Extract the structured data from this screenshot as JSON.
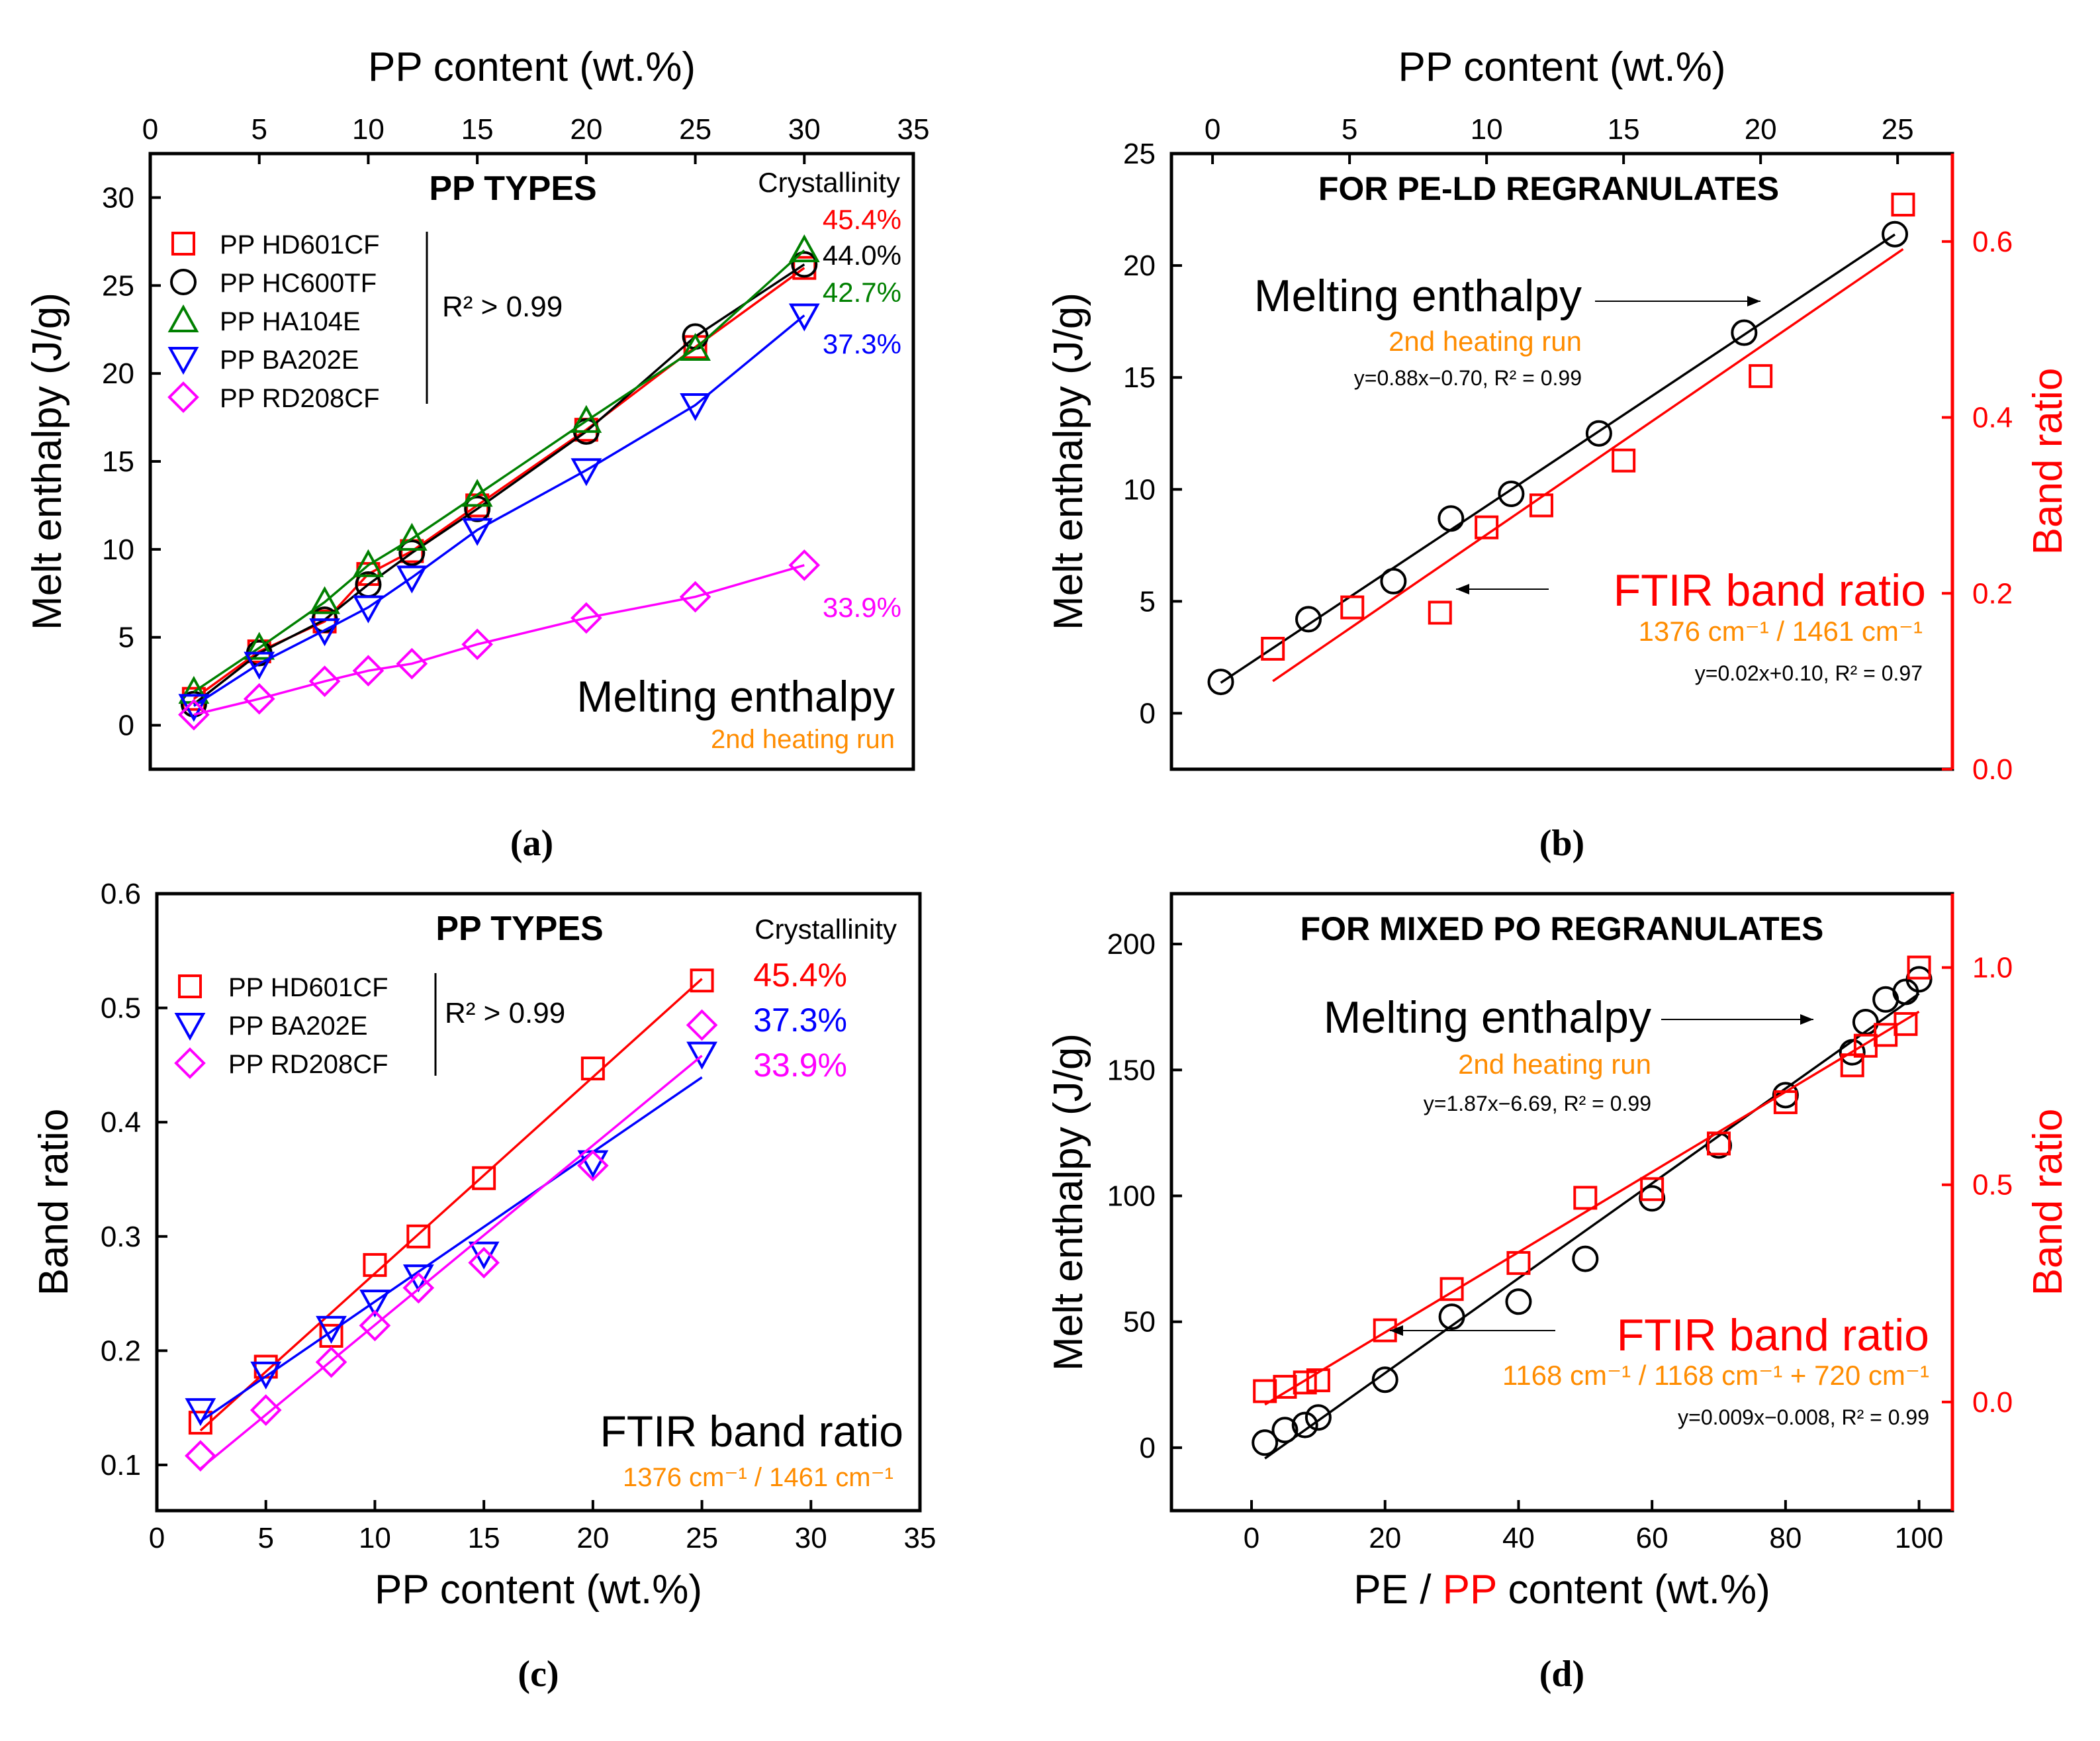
{
  "chart_data": [
    {
      "id": "a",
      "type": "scatter",
      "panel_label": "(a)",
      "title": "PP TYPES",
      "xlabel": "PP content (wt.%)",
      "ylabel": "Melt enthalpy (J/g)",
      "x_axis_position": "top",
      "xlim": [
        0,
        35
      ],
      "ylim": [
        -2.5,
        32.5
      ],
      "x_ticks": [
        "0",
        "5",
        "10",
        "15",
        "20",
        "25",
        "30",
        "35"
      ],
      "y_ticks": [
        "0",
        "5",
        "10",
        "15",
        "20",
        "25",
        "30"
      ],
      "legend_position": "top-left",
      "crystallinity_header": "Crystallinity",
      "r2_note": "R² > 0.99",
      "annotation_main": "Melting enthalpy",
      "annotation_sub": "2nd heating run",
      "series": [
        {
          "name": "PP HD601CF",
          "marker": "square",
          "color": "#ff0000",
          "crystallinity": "45.4%",
          "x": [
            2,
            5,
            8,
            10,
            12,
            15,
            20,
            25,
            30
          ],
          "y": [
            1.5,
            4.2,
            5.9,
            8.6,
            9.9,
            12.5,
            16.8,
            21.5,
            26.0
          ]
        },
        {
          "name": "PP HC600TF",
          "marker": "circle",
          "color": "#000000",
          "crystallinity": "44.0%",
          "x": [
            2,
            5,
            8,
            10,
            12,
            15,
            20,
            25,
            30
          ],
          "y": [
            1.2,
            4.1,
            6.0,
            8.0,
            9.8,
            12.3,
            16.7,
            22.1,
            26.2
          ]
        },
        {
          "name": "PP HA104E",
          "marker": "triangle-up",
          "color": "#008000",
          "crystallinity": "42.7%",
          "x": [
            2,
            5,
            8,
            10,
            12,
            15,
            20,
            25,
            30
          ],
          "y": [
            1.9,
            4.4,
            7.0,
            9.1,
            10.6,
            13.1,
            17.3,
            21.4,
            27.0
          ]
        },
        {
          "name": "PP BA202E",
          "marker": "triangle-down",
          "color": "#0000ff",
          "crystallinity": "37.3%",
          "x": [
            2,
            5,
            8,
            10,
            12,
            15,
            20,
            25,
            30
          ],
          "y": [
            1.1,
            3.5,
            5.4,
            6.7,
            8.4,
            11.1,
            14.5,
            18.2,
            23.3
          ]
        },
        {
          "name": "PP RD208CF",
          "marker": "diamond",
          "color": "#ff00ff",
          "crystallinity": "33.9%",
          "x": [
            2,
            5,
            8,
            10,
            12,
            15,
            20,
            25,
            30
          ],
          "y": [
            0.6,
            1.5,
            2.5,
            3.1,
            3.5,
            4.6,
            6.1,
            7.3,
            9.1
          ]
        }
      ]
    },
    {
      "id": "b",
      "type": "scatter",
      "panel_label": "(b)",
      "title": "FOR PE-LD REGRANULATES",
      "xlabel": "PP content (wt.%)",
      "ylabel": "Melt enthalpy (J/g)",
      "y2label": "Band ratio",
      "x_axis_position": "top",
      "xlim": [
        -1.5,
        27
      ],
      "ylim": [
        -2.5,
        25
      ],
      "y2lim": [
        0,
        0.7
      ],
      "x_ticks": [
        "0",
        "5",
        "10",
        "15",
        "20",
        "25"
      ],
      "y_ticks": [
        "0",
        "5",
        "10",
        "15",
        "20",
        "25"
      ],
      "y2_ticks": [
        "0.0",
        "0.2",
        "0.4",
        "0.6"
      ],
      "annotation_main": "Melting enthalpy",
      "annotation_sub": "2nd heating run",
      "fit_enthalpy": "y=0.88x−0.70, R² = 0.99",
      "annotation_ftir": "FTIR band ratio",
      "annotation_ftir_sub": "1376 cm⁻¹ / 1461 cm⁻¹",
      "fit_ftir": "y=0.02x+0.10, R² = 0.97",
      "series": [
        {
          "name": "Melting enthalpy",
          "axis": "left",
          "marker": "circle",
          "color": "#000000",
          "x": [
            0.3,
            3.5,
            6.6,
            8.7,
            10.9,
            14.1,
            19.4,
            24.9
          ],
          "y": [
            1.4,
            4.2,
            5.9,
            8.7,
            9.8,
            12.5,
            17.0,
            21.4
          ]
        },
        {
          "name": "FTIR band ratio",
          "axis": "right",
          "marker": "square",
          "color": "#ff0000",
          "x": [
            2.2,
            5.1,
            8.3,
            10.0,
            12.0,
            15.0,
            20.0,
            25.2
          ],
          "y": [
            0.137,
            0.184,
            0.178,
            0.275,
            0.3,
            0.351,
            0.447,
            0.642
          ]
        }
      ]
    },
    {
      "id": "c",
      "type": "scatter",
      "panel_label": "(c)",
      "title": "PP TYPES",
      "xlabel": "PP content (wt.%)",
      "ylabel": "Band ratio",
      "x_axis_position": "bottom",
      "xlim": [
        0,
        35
      ],
      "ylim": [
        0.06,
        0.6
      ],
      "x_ticks": [
        "0",
        "5",
        "10",
        "15",
        "20",
        "25",
        "30",
        "35"
      ],
      "y_ticks": [
        "0.1",
        "0.2",
        "0.3",
        "0.4",
        "0.5",
        "0.6"
      ],
      "legend_position": "top-left",
      "crystallinity_header": "Crystallinity",
      "r2_note": "R² > 0.99",
      "annotation_main": "FTIR band ratio",
      "annotation_sub": "1376 cm⁻¹ / 1461 cm⁻¹",
      "series": [
        {
          "name": "PP HD601CF",
          "marker": "square",
          "color": "#ff0000",
          "crystallinity": "45.4%",
          "x": [
            2,
            5,
            8,
            10,
            12,
            15,
            20,
            25
          ],
          "y": [
            0.137,
            0.186,
            0.213,
            0.275,
            0.3,
            0.351,
            0.447,
            0.524
          ]
        },
        {
          "name": "PP BA202E",
          "marker": "triangle-down",
          "color": "#0000ff",
          "crystallinity": "37.3%",
          "x": [
            2,
            5,
            8,
            10,
            12,
            15,
            20,
            25
          ],
          "y": [
            0.148,
            0.18,
            0.22,
            0.243,
            0.265,
            0.285,
            0.365,
            0.46
          ]
        },
        {
          "name": "PP RD208CF",
          "marker": "diamond",
          "color": "#ff00ff",
          "crystallinity": "33.9%",
          "x": [
            2,
            5,
            8,
            10,
            12,
            15,
            20,
            25
          ],
          "y": [
            0.108,
            0.148,
            0.19,
            0.222,
            0.255,
            0.277,
            0.362,
            0.485
          ]
        }
      ]
    },
    {
      "id": "d",
      "type": "scatter",
      "panel_label": "(d)",
      "title": "FOR MIXED PO REGRANULATES",
      "xlabel": "PE / PP content (wt.%)",
      "xlabel_parts": [
        "PE / ",
        "PP",
        " content (wt.%)"
      ],
      "ylabel": "Melt enthalpy (J/g)",
      "y2label": "Band ratio",
      "x_axis_position": "bottom",
      "xlim": [
        -12,
        105
      ],
      "ylim": [
        -25,
        220
      ],
      "y2lim": [
        -0.25,
        1.17
      ],
      "x_ticks": [
        "0",
        "20",
        "40",
        "60",
        "80",
        "100"
      ],
      "y_ticks": [
        "0",
        "50",
        "100",
        "150",
        "200"
      ],
      "y2_ticks": [
        "0.0",
        "0.5",
        "1.0"
      ],
      "annotation_main": "Melting enthalpy",
      "annotation_sub": "2nd heating run",
      "fit_enthalpy": "y=1.87x−6.69, R² = 0.99",
      "annotation_ftir": "FTIR band ratio",
      "annotation_ftir_sub": "1168 cm⁻¹ / 1168 cm⁻¹ + 720 cm⁻¹",
      "fit_ftir": "y=0.009x−0.008, R² = 0.99",
      "series": [
        {
          "name": "Melting enthalpy",
          "axis": "left",
          "marker": "circle",
          "color": "#000000",
          "x": [
            2,
            5,
            8,
            10,
            20,
            30,
            40,
            50,
            60,
            70,
            80,
            90,
            92,
            95,
            98,
            100
          ],
          "y": [
            2,
            7,
            9,
            12,
            27,
            52,
            58,
            75,
            99,
            120,
            140,
            157,
            169,
            178,
            181,
            186
          ]
        },
        {
          "name": "FTIR band ratio",
          "axis": "right",
          "marker": "square",
          "color": "#ff0000",
          "x": [
            2,
            5,
            8,
            10,
            20,
            30,
            40,
            50,
            60,
            70,
            80,
            90,
            92,
            95,
            98,
            100
          ],
          "y": [
            0.025,
            0.035,
            0.045,
            0.05,
            0.165,
            0.26,
            0.32,
            0.47,
            0.49,
            0.595,
            0.69,
            0.775,
            0.82,
            0.845,
            0.87,
            1.0
          ]
        }
      ]
    }
  ]
}
